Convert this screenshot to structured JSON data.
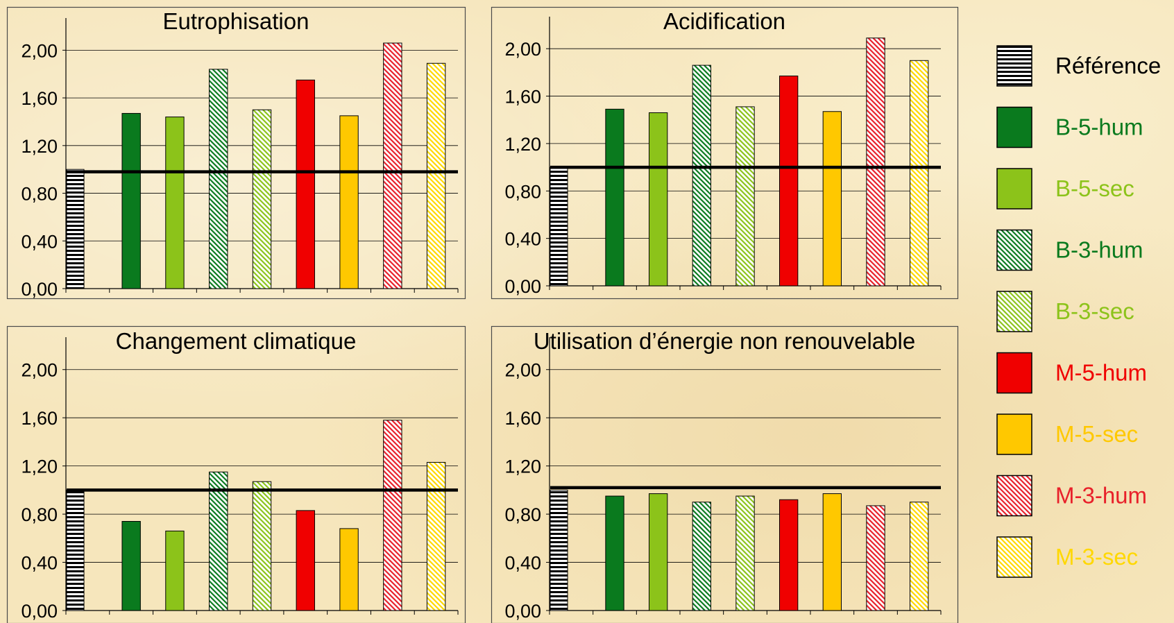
{
  "colors": {
    "frame": "#4a4a4a",
    "reference_line": "#000000"
  },
  "series_styles": [
    {
      "name": "Référence",
      "fill": "#ffffff",
      "pattern": "hstripe",
      "stroke": "#000000",
      "label_color": "#000000"
    },
    {
      "name": "B-5-hum",
      "fill": "#0a7a1e",
      "pattern": "solid",
      "stroke": "#000000",
      "label_color": "#0a7a1e"
    },
    {
      "name": "B-5-sec",
      "fill": "#8cc31a",
      "pattern": "solid",
      "stroke": "#000000",
      "label_color": "#8cc31a"
    },
    {
      "name": "B-3-hum",
      "fill": "#0a7a1e",
      "pattern": "diag",
      "stroke": "#000000",
      "label_color": "#0a7a1e"
    },
    {
      "name": "B-3-sec",
      "fill": "#8cc31a",
      "pattern": "diag",
      "stroke": "#000000",
      "label_color": "#8cc31a"
    },
    {
      "name": "M-5-hum",
      "fill": "#f00000",
      "pattern": "solid",
      "stroke": "#000000",
      "label_color": "#f00000"
    },
    {
      "name": "M-5-sec",
      "fill": "#ffc800",
      "pattern": "solid",
      "stroke": "#000000",
      "label_color": "#ffc800"
    },
    {
      "name": "M-3-hum",
      "fill": "#e8202a",
      "pattern": "diag",
      "stroke": "#000000",
      "label_color": "#e8202a"
    },
    {
      "name": "M-3-sec",
      "fill": "#ffd800",
      "pattern": "diag",
      "stroke": "#000000",
      "label_color": "#ffd800"
    }
  ],
  "legend": {
    "placement": "right",
    "entries": [
      "Référence",
      "B-5-hum",
      "B-5-sec",
      "B-3-hum",
      "B-3-sec",
      "M-5-hum",
      "M-5-sec",
      "M-3-hum",
      "M-3-sec"
    ]
  },
  "chart_data": [
    {
      "type": "bar",
      "title": "Eutrophisation",
      "ylim": [
        0,
        2.2
      ],
      "yticks": [
        "0,00",
        "0,40",
        "0,80",
        "1,20",
        "1,60",
        "2,00"
      ],
      "ytick_values": [
        0,
        0.4,
        0.8,
        1.2,
        1.6,
        2.0
      ],
      "grid": true,
      "reference_line": 0.98,
      "series": [
        {
          "name": "Référence",
          "value": 1.0
        },
        {
          "name": "B-5-hum",
          "value": 1.47
        },
        {
          "name": "B-5-sec",
          "value": 1.44
        },
        {
          "name": "B-3-hum",
          "value": 1.84
        },
        {
          "name": "B-3-sec",
          "value": 1.5
        },
        {
          "name": "M-5-hum",
          "value": 1.75
        },
        {
          "name": "M-5-sec",
          "value": 1.45
        },
        {
          "name": "M-3-hum",
          "value": 2.06
        },
        {
          "name": "M-3-sec",
          "value": 1.89
        }
      ]
    },
    {
      "type": "bar",
      "title": "Acidification",
      "ylim": [
        0,
        2.2
      ],
      "yticks": [
        "0,00",
        "0,40",
        "0,80",
        "1,20",
        "1,60",
        "2,00"
      ],
      "ytick_values": [
        0,
        0.4,
        0.8,
        1.2,
        1.6,
        2.0
      ],
      "grid": true,
      "reference_line": 1.0,
      "series": [
        {
          "name": "Référence",
          "value": 1.0
        },
        {
          "name": "B-5-hum",
          "value": 1.49
        },
        {
          "name": "B-5-sec",
          "value": 1.46
        },
        {
          "name": "B-3-hum",
          "value": 1.86
        },
        {
          "name": "B-3-sec",
          "value": 1.51
        },
        {
          "name": "M-5-hum",
          "value": 1.77
        },
        {
          "name": "M-5-sec",
          "value": 1.47
        },
        {
          "name": "M-3-hum",
          "value": 2.09
        },
        {
          "name": "M-3-sec",
          "value": 1.9
        }
      ]
    },
    {
      "type": "bar",
      "title": "Changement climatique",
      "ylim": [
        0,
        2.2
      ],
      "yticks": [
        "0,00",
        "0,40",
        "0,80",
        "1,20",
        "1,60",
        "2,00"
      ],
      "ytick_values": [
        0,
        0.4,
        0.8,
        1.2,
        1.6,
        2.0
      ],
      "grid": true,
      "reference_line": 1.0,
      "series": [
        {
          "name": "Référence",
          "value": 1.0
        },
        {
          "name": "B-5-hum",
          "value": 0.74
        },
        {
          "name": "B-5-sec",
          "value": 0.66
        },
        {
          "name": "B-3-hum",
          "value": 1.15
        },
        {
          "name": "B-3-sec",
          "value": 1.07
        },
        {
          "name": "M-5-hum",
          "value": 0.83
        },
        {
          "name": "M-5-sec",
          "value": 0.68
        },
        {
          "name": "M-3-hum",
          "value": 1.58
        },
        {
          "name": "M-3-sec",
          "value": 1.23
        }
      ]
    },
    {
      "type": "bar",
      "title": "Utilisation d’énergie non renouvelable",
      "ylim": [
        0,
        2.2
      ],
      "yticks": [
        "0,00",
        "0,40",
        "0,80",
        "1,20",
        "1,60",
        "2,00"
      ],
      "ytick_values": [
        0,
        0.4,
        0.8,
        1.2,
        1.6,
        2.0
      ],
      "grid": true,
      "reference_line": 1.02,
      "series": [
        {
          "name": "Référence",
          "value": 1.0
        },
        {
          "name": "B-5-hum",
          "value": 0.95
        },
        {
          "name": "B-5-sec",
          "value": 0.97
        },
        {
          "name": "B-3-hum",
          "value": 0.9
        },
        {
          "name": "B-3-sec",
          "value": 0.95
        },
        {
          "name": "M-5-hum",
          "value": 0.92
        },
        {
          "name": "M-5-sec",
          "value": 0.97
        },
        {
          "name": "M-3-hum",
          "value": 0.87
        },
        {
          "name": "M-3-sec",
          "value": 0.9
        }
      ]
    }
  ]
}
